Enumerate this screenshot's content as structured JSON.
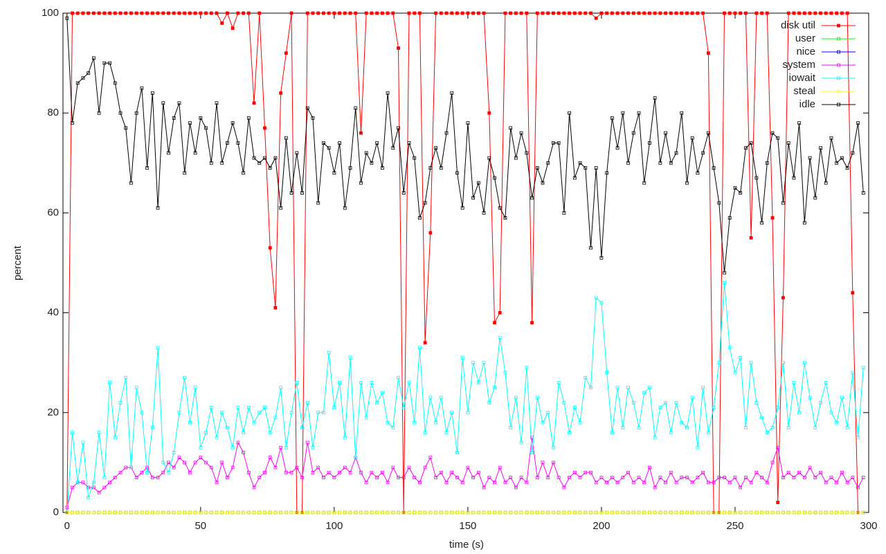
{
  "chart_data": {
    "type": "line",
    "xlabel": "time (s)",
    "ylabel": "percent",
    "xlim": [
      -1.5,
      300
    ],
    "xticks": [
      0,
      50,
      100,
      150,
      200,
      250,
      300
    ],
    "ylim": [
      0,
      100
    ],
    "yticks": [
      0,
      20,
      40,
      60,
      80,
      100
    ],
    "legend": "top-right",
    "x": [
      0,
      2,
      4,
      6,
      8,
      10,
      12,
      14,
      16,
      18,
      20,
      22,
      24,
      26,
      28,
      30,
      32,
      34,
      36,
      38,
      40,
      42,
      44,
      46,
      48,
      50,
      52,
      54,
      56,
      58,
      60,
      62,
      64,
      66,
      68,
      70,
      72,
      74,
      76,
      78,
      80,
      82,
      84,
      86,
      88,
      90,
      92,
      94,
      96,
      98,
      100,
      102,
      104,
      106,
      108,
      110,
      112,
      114,
      116,
      118,
      120,
      122,
      124,
      126,
      128,
      130,
      132,
      134,
      136,
      138,
      140,
      142,
      144,
      146,
      148,
      150,
      152,
      154,
      156,
      158,
      160,
      162,
      164,
      166,
      168,
      170,
      172,
      174,
      176,
      178,
      180,
      182,
      184,
      186,
      188,
      190,
      192,
      194,
      196,
      198,
      200,
      202,
      204,
      206,
      208,
      210,
      212,
      214,
      216,
      218,
      220,
      222,
      224,
      226,
      228,
      230,
      232,
      234,
      236,
      238,
      240,
      242,
      244,
      246,
      248,
      250,
      252,
      254,
      256,
      258,
      260,
      262,
      264,
      266,
      268,
      270,
      272,
      274,
      276,
      278,
      280,
      282,
      284,
      286,
      288,
      290,
      292,
      294,
      296,
      298
    ],
    "series": [
      {
        "name": "disk util",
        "color": "#ff0000",
        "values": [
          0,
          100,
          100,
          100,
          100,
          100,
          100,
          100,
          100,
          100,
          100,
          100,
          100,
          100,
          100,
          100,
          100,
          100,
          100,
          100,
          100,
          100,
          100,
          100,
          100,
          100,
          100,
          100,
          100,
          98,
          100,
          97,
          100,
          100,
          100,
          82,
          100,
          77,
          53,
          41,
          84,
          92,
          100,
          0,
          0,
          100,
          100,
          100,
          100,
          100,
          100,
          100,
          100,
          100,
          100,
          76,
          100,
          100,
          100,
          100,
          100,
          100,
          93,
          0,
          100,
          100,
          100,
          34,
          56,
          100,
          100,
          100,
          100,
          100,
          100,
          100,
          100,
          100,
          100,
          80,
          38,
          40,
          100,
          100,
          100,
          100,
          100,
          38,
          100,
          100,
          100,
          100,
          100,
          100,
          100,
          100,
          100,
          100,
          100,
          99,
          100,
          100,
          100,
          100,
          100,
          100,
          100,
          100,
          100,
          100,
          100,
          100,
          100,
          100,
          100,
          100,
          100,
          100,
          100,
          100,
          92,
          0,
          0,
          100,
          100,
          100,
          100,
          100,
          55,
          100,
          100,
          100,
          59,
          2,
          43,
          100,
          100,
          100,
          100,
          100,
          100,
          100,
          100,
          100,
          100,
          100,
          100,
          44,
          0,
          null
        ]
      },
      {
        "name": "user",
        "color": "#00ff00",
        "values": [
          0,
          0,
          0,
          0,
          0,
          0,
          0,
          0,
          0,
          0,
          0,
          0,
          0,
          0,
          0,
          0,
          0,
          0,
          0,
          0,
          0,
          0,
          0,
          0,
          0,
          0,
          0,
          0,
          0,
          0,
          0,
          0,
          0,
          0,
          0,
          0,
          0,
          0,
          0,
          0,
          0,
          0,
          0,
          0,
          0,
          0,
          0,
          0,
          0,
          0,
          0,
          0,
          0,
          0,
          0,
          0,
          0,
          0,
          0,
          0,
          0,
          0,
          0,
          0,
          0,
          0,
          0,
          0,
          0,
          0,
          0,
          0,
          0,
          0,
          0,
          0,
          0,
          0,
          0,
          0,
          0,
          0,
          0,
          0,
          0,
          0,
          0,
          0,
          0,
          0,
          0,
          0,
          0,
          0,
          0,
          0,
          0,
          0,
          0,
          0,
          0,
          0,
          0,
          0,
          0,
          0,
          0,
          0,
          0,
          0,
          0,
          0,
          0,
          0,
          0,
          0,
          0,
          0,
          0,
          0,
          0,
          0,
          0,
          0,
          0,
          0,
          0,
          0,
          0,
          0,
          0,
          0,
          0,
          0,
          0,
          0,
          0,
          0,
          0,
          0,
          0,
          0,
          0,
          0,
          0,
          0,
          0,
          0,
          0,
          0
        ]
      },
      {
        "name": "nice",
        "color": "#0000ff",
        "values": [
          0,
          0,
          0,
          0,
          0,
          0,
          0,
          0,
          0,
          0,
          0,
          0,
          0,
          0,
          0,
          0,
          0,
          0,
          0,
          0,
          0,
          0,
          0,
          0,
          0,
          0,
          0,
          0,
          0,
          0,
          0,
          0,
          0,
          0,
          0,
          0,
          0,
          0,
          0,
          0,
          0,
          0,
          0,
          0,
          0,
          0,
          0,
          0,
          0,
          0,
          0,
          0,
          0,
          0,
          0,
          0,
          0,
          0,
          0,
          0,
          0,
          0,
          0,
          0,
          0,
          0,
          0,
          0,
          0,
          0,
          0,
          0,
          0,
          0,
          0,
          0,
          0,
          0,
          0,
          0,
          0,
          0,
          0,
          0,
          0,
          0,
          0,
          0,
          0,
          0,
          0,
          0,
          0,
          0,
          0,
          0,
          0,
          0,
          0,
          0,
          0,
          0,
          0,
          0,
          0,
          0,
          0,
          0,
          0,
          0,
          0,
          0,
          0,
          0,
          0,
          0,
          0,
          0,
          0,
          0,
          0,
          0,
          0,
          0,
          0,
          0,
          0,
          0,
          0,
          0,
          0,
          0,
          0,
          0,
          0,
          0,
          0,
          0,
          0,
          0,
          0,
          0,
          0,
          0,
          0,
          0,
          0,
          0,
          0,
          0
        ]
      },
      {
        "name": "system",
        "color": "#ff00ff",
        "values": [
          1,
          5,
          6,
          6,
          5,
          5,
          4,
          5,
          6,
          7,
          8,
          9,
          9,
          7,
          8,
          9,
          7,
          7,
          8,
          10,
          9,
          11,
          10,
          8,
          10,
          11,
          10,
          9,
          6,
          10,
          7,
          9,
          14,
          12,
          8,
          5,
          7,
          8,
          11,
          9,
          13,
          8,
          8,
          9,
          7,
          14,
          8,
          9,
          7,
          8,
          7,
          8,
          9,
          8,
          11,
          8,
          6,
          8,
          7,
          8,
          6,
          9,
          7,
          7,
          9,
          7,
          6,
          9,
          11,
          7,
          8,
          6,
          8,
          7,
          6,
          9,
          7,
          8,
          5,
          7,
          6,
          9,
          6,
          7,
          5,
          7,
          6,
          15,
          7,
          10,
          7,
          10,
          7,
          5,
          7,
          8,
          7,
          8,
          8,
          6,
          7,
          6,
          7,
          6,
          7,
          8,
          6,
          7,
          6,
          9,
          5,
          7,
          6,
          8,
          6,
          7,
          7,
          6,
          7,
          8,
          6,
          6,
          7,
          7,
          6,
          7,
          5,
          7,
          6,
          8,
          7,
          6,
          10,
          13,
          7,
          8,
          7,
          8,
          7,
          9,
          7,
          8,
          6,
          7,
          6,
          8,
          6,
          7,
          5,
          7
        ]
      },
      {
        "name": "iowait",
        "color": "#00ffff",
        "values": [
          0,
          16,
          6,
          14,
          3,
          6,
          16,
          7,
          26,
          15,
          22,
          27,
          9,
          25,
          20,
          8,
          17,
          33,
          10,
          8,
          12,
          20,
          27,
          18,
          25,
          13,
          16,
          21,
          15,
          20,
          17,
          13,
          21,
          16,
          21,
          18,
          20,
          21,
          16,
          19,
          25,
          13,
          20,
          26,
          17,
          22,
          13,
          20,
          20,
          32,
          21,
          26,
          15,
          31,
          11,
          26,
          19,
          26,
          22,
          24,
          18,
          17,
          27,
          21,
          26,
          18,
          33,
          16,
          23,
          18,
          23,
          16,
          20,
          12,
          31,
          20,
          30,
          26,
          30,
          22,
          25,
          35,
          28,
          17,
          23,
          14,
          29,
          12,
          23,
          18,
          20,
          13,
          26,
          22,
          16,
          21,
          18,
          27,
          25,
          43,
          42,
          28,
          16,
          25,
          17,
          25,
          22,
          17,
          24,
          25,
          15,
          21,
          22,
          16,
          22,
          18,
          17,
          23,
          13,
          25,
          16,
          21,
          30,
          46,
          33,
          28,
          31,
          17,
          30,
          22,
          19,
          16,
          17,
          21,
          30,
          17,
          26,
          20,
          30,
          23,
          17,
          22,
          26,
          20,
          18,
          23,
          17,
          28,
          15,
          29
        ]
      },
      {
        "name": "steal",
        "color": "#ffff00",
        "values": [
          0,
          0,
          0,
          0,
          0,
          0,
          0,
          0,
          0,
          0,
          0,
          0,
          0,
          0,
          0,
          0,
          0,
          0,
          0,
          0,
          0,
          0,
          0,
          0,
          0,
          0,
          0,
          0,
          0,
          0,
          0,
          0,
          0,
          0,
          0,
          0,
          0,
          0,
          0,
          0,
          0,
          0,
          0,
          0,
          0,
          0,
          0,
          0,
          0,
          0,
          0,
          0,
          0,
          0,
          0,
          0,
          0,
          0,
          0,
          0,
          0,
          0,
          0,
          0,
          0,
          0,
          0,
          0,
          0,
          0,
          0,
          0,
          0,
          0,
          0,
          0,
          0,
          0,
          0,
          0,
          0,
          0,
          0,
          0,
          0,
          0,
          0,
          0,
          0,
          0,
          0,
          0,
          0,
          0,
          0,
          0,
          0,
          0,
          0,
          0,
          0,
          0,
          0,
          0,
          0,
          0,
          0,
          0,
          0,
          0,
          0,
          0,
          0,
          0,
          0,
          0,
          0,
          0,
          0,
          0,
          0,
          0,
          0,
          0,
          0,
          0,
          0,
          0,
          0,
          0,
          0,
          0,
          0,
          0,
          0,
          0,
          0,
          0,
          0,
          0,
          0,
          0,
          0,
          0,
          0,
          0,
          0,
          0,
          0,
          0
        ]
      },
      {
        "name": "idle",
        "color": "#000000",
        "values": [
          99,
          78,
          86,
          87,
          88,
          91,
          80,
          90,
          90,
          86,
          80,
          77,
          66,
          80,
          85,
          69,
          84,
          61,
          82,
          72,
          79,
          82,
          68,
          78,
          72,
          79,
          77,
          70,
          82,
          70,
          74,
          78,
          74,
          68,
          79,
          71,
          70,
          71,
          69,
          71,
          61,
          75,
          64,
          72,
          64,
          81,
          79,
          62,
          74,
          73,
          68,
          74,
          61,
          69,
          81,
          66,
          72,
          70,
          74,
          69,
          84,
          73,
          77,
          64,
          74,
          71,
          59,
          62,
          69,
          73,
          69,
          76,
          84,
          68,
          61,
          78,
          63,
          66,
          60,
          71,
          67,
          61,
          59,
          77,
          71,
          76,
          72,
          63,
          69,
          66,
          70,
          74,
          74,
          60,
          80,
          67,
          70,
          69,
          53,
          69,
          51,
          68,
          79,
          73,
          80,
          70,
          76,
          80,
          66,
          74,
          83,
          70,
          76,
          70,
          72,
          80,
          66,
          75,
          68,
          72,
          76,
          69,
          62,
          48,
          59,
          65,
          64,
          73,
          74,
          67,
          58,
          70,
          76,
          75,
          62,
          74,
          67,
          78,
          58,
          71,
          63,
          73,
          66,
          75,
          70,
          71,
          69,
          72,
          78,
          64
        ]
      }
    ]
  }
}
